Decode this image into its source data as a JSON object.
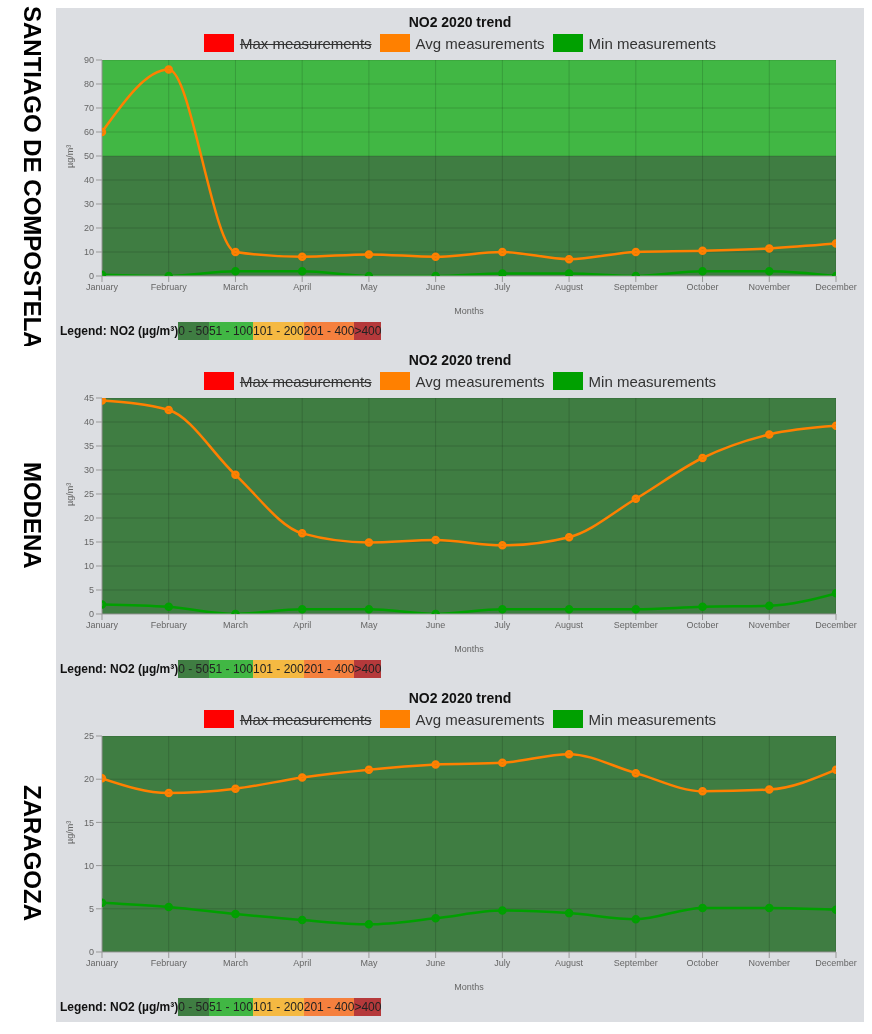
{
  "chart_data": [
    {
      "type": "line",
      "title": "NO2 2020 trend",
      "xlabel": "Months",
      "ylabel": "µg/m³",
      "annotations": [
        "SANTIAGO DE COMPOSTELA",
        "Legend: NO2 (µg/m³)",
        "0 - 50",
        "51 - 100",
        "101 - 200",
        "201 - 400",
        ">400"
      ],
      "categories": [
        "January",
        "February",
        "March",
        "April",
        "May",
        "June",
        "July",
        "August",
        "September",
        "October",
        "November",
        "December"
      ],
      "series": [
        {
          "name": "Max measurements",
          "color": "#ff0000",
          "values": [
            null,
            null,
            null,
            null,
            null,
            null,
            null,
            null,
            null,
            null,
            null,
            null
          ]
        },
        {
          "name": "Avg measurements",
          "color": "#ff8000",
          "values": [
            60,
            86,
            10,
            8,
            9,
            8,
            10,
            7,
            10,
            10.5,
            11.5,
            13.5
          ]
        },
        {
          "name": "Min measurements",
          "color": "#00a000",
          "values": [
            0.5,
            0,
            2,
            2,
            0,
            0,
            1,
            1,
            0,
            2,
            2,
            0
          ]
        }
      ],
      "bands": [
        {
          "axis": "y",
          "from": 0,
          "to": 50,
          "color": "#3f7d42"
        },
        {
          "axis": "y",
          "from": 50,
          "to": 90,
          "color": "#41b744"
        }
      ],
      "ylim": [
        0,
        90
      ],
      "yticks": [
        0,
        10,
        20,
        30,
        40,
        50,
        60,
        70,
        80,
        90
      ],
      "grid": true,
      "legend": "top",
      "marker": "circle",
      "line_style": "solid"
    },
    {
      "type": "line",
      "title": "NO2 2020 trend",
      "xlabel": "Months",
      "ylabel": "µg/m³",
      "annotations": [
        "MODENA",
        "Legend: NO2 (µg/m³)",
        "0 - 50",
        "51 - 100",
        "101 - 200",
        "201 - 400",
        ">400"
      ],
      "categories": [
        "January",
        "February",
        "March",
        "April",
        "May",
        "June",
        "July",
        "August",
        "September",
        "October",
        "November",
        "December"
      ],
      "series": [
        {
          "name": "Max measurements",
          "color": "#ff0000",
          "values": [
            null,
            null,
            null,
            null,
            null,
            null,
            null,
            null,
            null,
            null,
            null,
            null
          ]
        },
        {
          "name": "Avg measurements",
          "color": "#ff8000",
          "values": [
            44.5,
            42.5,
            29,
            16.8,
            14.9,
            15.4,
            14.3,
            16,
            24,
            32.5,
            37.4,
            39.2
          ]
        },
        {
          "name": "Min measurements",
          "color": "#00a000",
          "values": [
            2,
            1.5,
            0,
            1,
            1,
            0,
            1,
            1,
            1,
            1.5,
            1.7,
            4.3
          ]
        }
      ],
      "bands": [
        {
          "axis": "y",
          "from": 0,
          "to": 45,
          "color": "#3f7d42"
        }
      ],
      "ylim": [
        0,
        45
      ],
      "yticks": [
        0,
        5,
        10,
        15,
        20,
        25,
        30,
        35,
        40,
        45
      ],
      "grid": true,
      "legend": "top",
      "marker": "circle",
      "line_style": "solid"
    },
    {
      "type": "line",
      "title": "NO2 2020 trend",
      "xlabel": "Months",
      "ylabel": "µg/m³",
      "annotations": [
        "ZARAGOZA",
        "Legend: NO2 (µg/m³)",
        "0 - 50",
        "51 - 100",
        "101 - 200",
        "201 - 400",
        ">400"
      ],
      "categories": [
        "January",
        "February",
        "March",
        "April",
        "May",
        "June",
        "July",
        "August",
        "September",
        "October",
        "November",
        "December"
      ],
      "series": [
        {
          "name": "Max measurements",
          "color": "#ff0000",
          "values": [
            null,
            null,
            null,
            null,
            null,
            null,
            null,
            null,
            null,
            null,
            null,
            null
          ]
        },
        {
          "name": "Avg measurements",
          "color": "#ff8000",
          "values": [
            20.1,
            18.4,
            18.9,
            20.2,
            21.1,
            21.7,
            21.9,
            22.9,
            20.7,
            18.6,
            18.8,
            21.1
          ]
        },
        {
          "name": "Min measurements",
          "color": "#00a000",
          "values": [
            5.7,
            5.2,
            4.4,
            3.7,
            3.2,
            3.9,
            4.8,
            4.5,
            3.8,
            5.1,
            5.1,
            4.9
          ]
        }
      ],
      "bands": [
        {
          "axis": "y",
          "from": 0,
          "to": 25,
          "color": "#3f7d42"
        }
      ],
      "ylim": [
        0,
        25
      ],
      "yticks": [
        0,
        5,
        10,
        15,
        20,
        25
      ],
      "grid": true,
      "legend": "top",
      "marker": "circle",
      "line_style": "solid"
    }
  ]
}
